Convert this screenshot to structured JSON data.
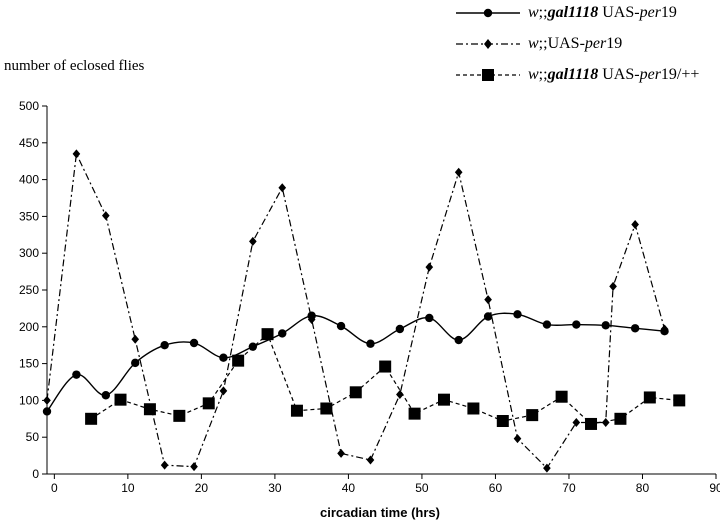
{
  "chart_data": {
    "type": "line",
    "xlabel": "circadian time (hrs)",
    "ylabel": "number of eclosed flies",
    "xlim": [
      -1,
      90
    ],
    "ylim": [
      0,
      500
    ],
    "xticks": [
      0,
      10,
      20,
      30,
      40,
      50,
      60,
      70,
      80,
      90
    ],
    "yticks": [
      0,
      50,
      100,
      150,
      200,
      250,
      300,
      350,
      400,
      450,
      500
    ],
    "grid": false,
    "legend_position": "top-right",
    "series": [
      {
        "name": "w;;gal1118 UAS-per19",
        "legend_parts": [
          "w",
          ";;",
          "gal1118",
          " UAS-",
          "per",
          "19"
        ],
        "marker": "circle",
        "line": "solid",
        "points": [
          [
            -1,
            85
          ],
          [
            3,
            135
          ],
          [
            7,
            107
          ],
          [
            11,
            151
          ],
          [
            15,
            175
          ],
          [
            19,
            178
          ],
          [
            23,
            158
          ],
          [
            27,
            173
          ],
          [
            31,
            191
          ],
          [
            35,
            215
          ],
          [
            39,
            201
          ],
          [
            43,
            177
          ],
          [
            47,
            197
          ],
          [
            51,
            212
          ],
          [
            55,
            182
          ],
          [
            59,
            214
          ],
          [
            63,
            217
          ],
          [
            67,
            203
          ],
          [
            71,
            203
          ],
          [
            75,
            202
          ],
          [
            79,
            198
          ],
          [
            83,
            194
          ]
        ]
      },
      {
        "name": "w;;UAS-per19",
        "legend_parts": [
          "w",
          ";;UAS-",
          "per",
          "19"
        ],
        "marker": "diamond",
        "line": "dashdot",
        "points": [
          [
            -1,
            100
          ],
          [
            3,
            435
          ],
          [
            7,
            351
          ],
          [
            11,
            183
          ],
          [
            15,
            12
          ],
          [
            19,
            10
          ],
          [
            23,
            113
          ],
          [
            27,
            316
          ],
          [
            31,
            389
          ],
          [
            35,
            210
          ],
          [
            39,
            28
          ],
          [
            43,
            19
          ],
          [
            47,
            108
          ],
          [
            51,
            281
          ],
          [
            55,
            410
          ],
          [
            59,
            237
          ],
          [
            63,
            48
          ],
          [
            67,
            8
          ],
          [
            71,
            70
          ],
          [
            75,
            70
          ],
          [
            76,
            255
          ],
          [
            79,
            339
          ],
          [
            83,
            197
          ]
        ]
      },
      {
        "name": "w;;gal1118 UAS-per19/++",
        "legend_parts": [
          "w",
          ";;",
          "gal1118",
          " UAS-",
          "per",
          "19/++"
        ],
        "marker": "square",
        "line": "dashed",
        "points": [
          [
            5,
            75
          ],
          [
            9,
            101
          ],
          [
            13,
            88
          ],
          [
            17,
            79
          ],
          [
            21,
            96
          ],
          [
            25,
            154
          ],
          [
            29,
            190
          ],
          [
            33,
            86
          ],
          [
            37,
            89
          ],
          [
            41,
            111
          ],
          [
            45,
            146
          ],
          [
            49,
            82
          ],
          [
            53,
            101
          ],
          [
            57,
            89
          ],
          [
            61,
            72
          ],
          [
            65,
            80
          ],
          [
            69,
            105
          ],
          [
            73,
            68
          ],
          [
            77,
            75
          ],
          [
            81,
            104
          ],
          [
            85,
            100
          ]
        ]
      }
    ]
  }
}
